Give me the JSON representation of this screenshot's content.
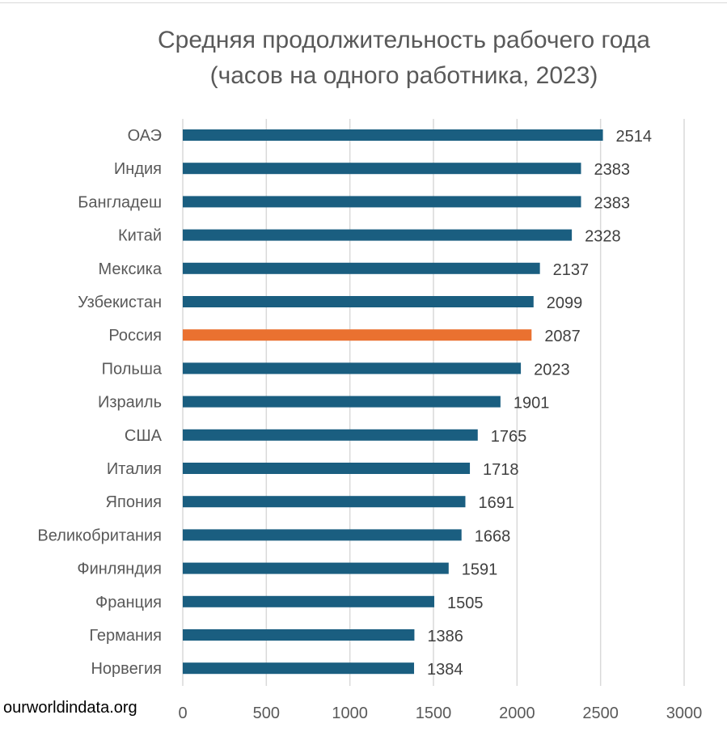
{
  "chart_data": {
    "type": "bar",
    "orientation": "horizontal",
    "title": [
      "Средняя продолжительность рабочего года",
      "(часов на одного работника, 2023)"
    ],
    "categories": [
      "ОАЭ",
      "Индия",
      "Бангладеш",
      "Китай",
      "Мексика",
      "Узбекистан",
      "Россия",
      "Польша",
      "Израиль",
      "США",
      "Италия",
      "Япония",
      "Великобритания",
      "Финляндия",
      "Франция",
      "Германия",
      "Норвегия"
    ],
    "values": [
      2514,
      2383,
      2383,
      2328,
      2137,
      2099,
      2087,
      2023,
      1901,
      1765,
      1718,
      1691,
      1668,
      1591,
      1505,
      1386,
      1384
    ],
    "highlight": "Россия",
    "xlim": [
      0,
      3000
    ],
    "xticks": [
      0,
      500,
      1000,
      1500,
      2000,
      2500,
      3000
    ],
    "grid": true,
    "data_labels": true,
    "colors": {
      "bar": "#1a5e80",
      "highlight": "#ea7130",
      "grid": "#d9d9d9",
      "text": "#595959"
    }
  },
  "source": "ourworldindata.org"
}
